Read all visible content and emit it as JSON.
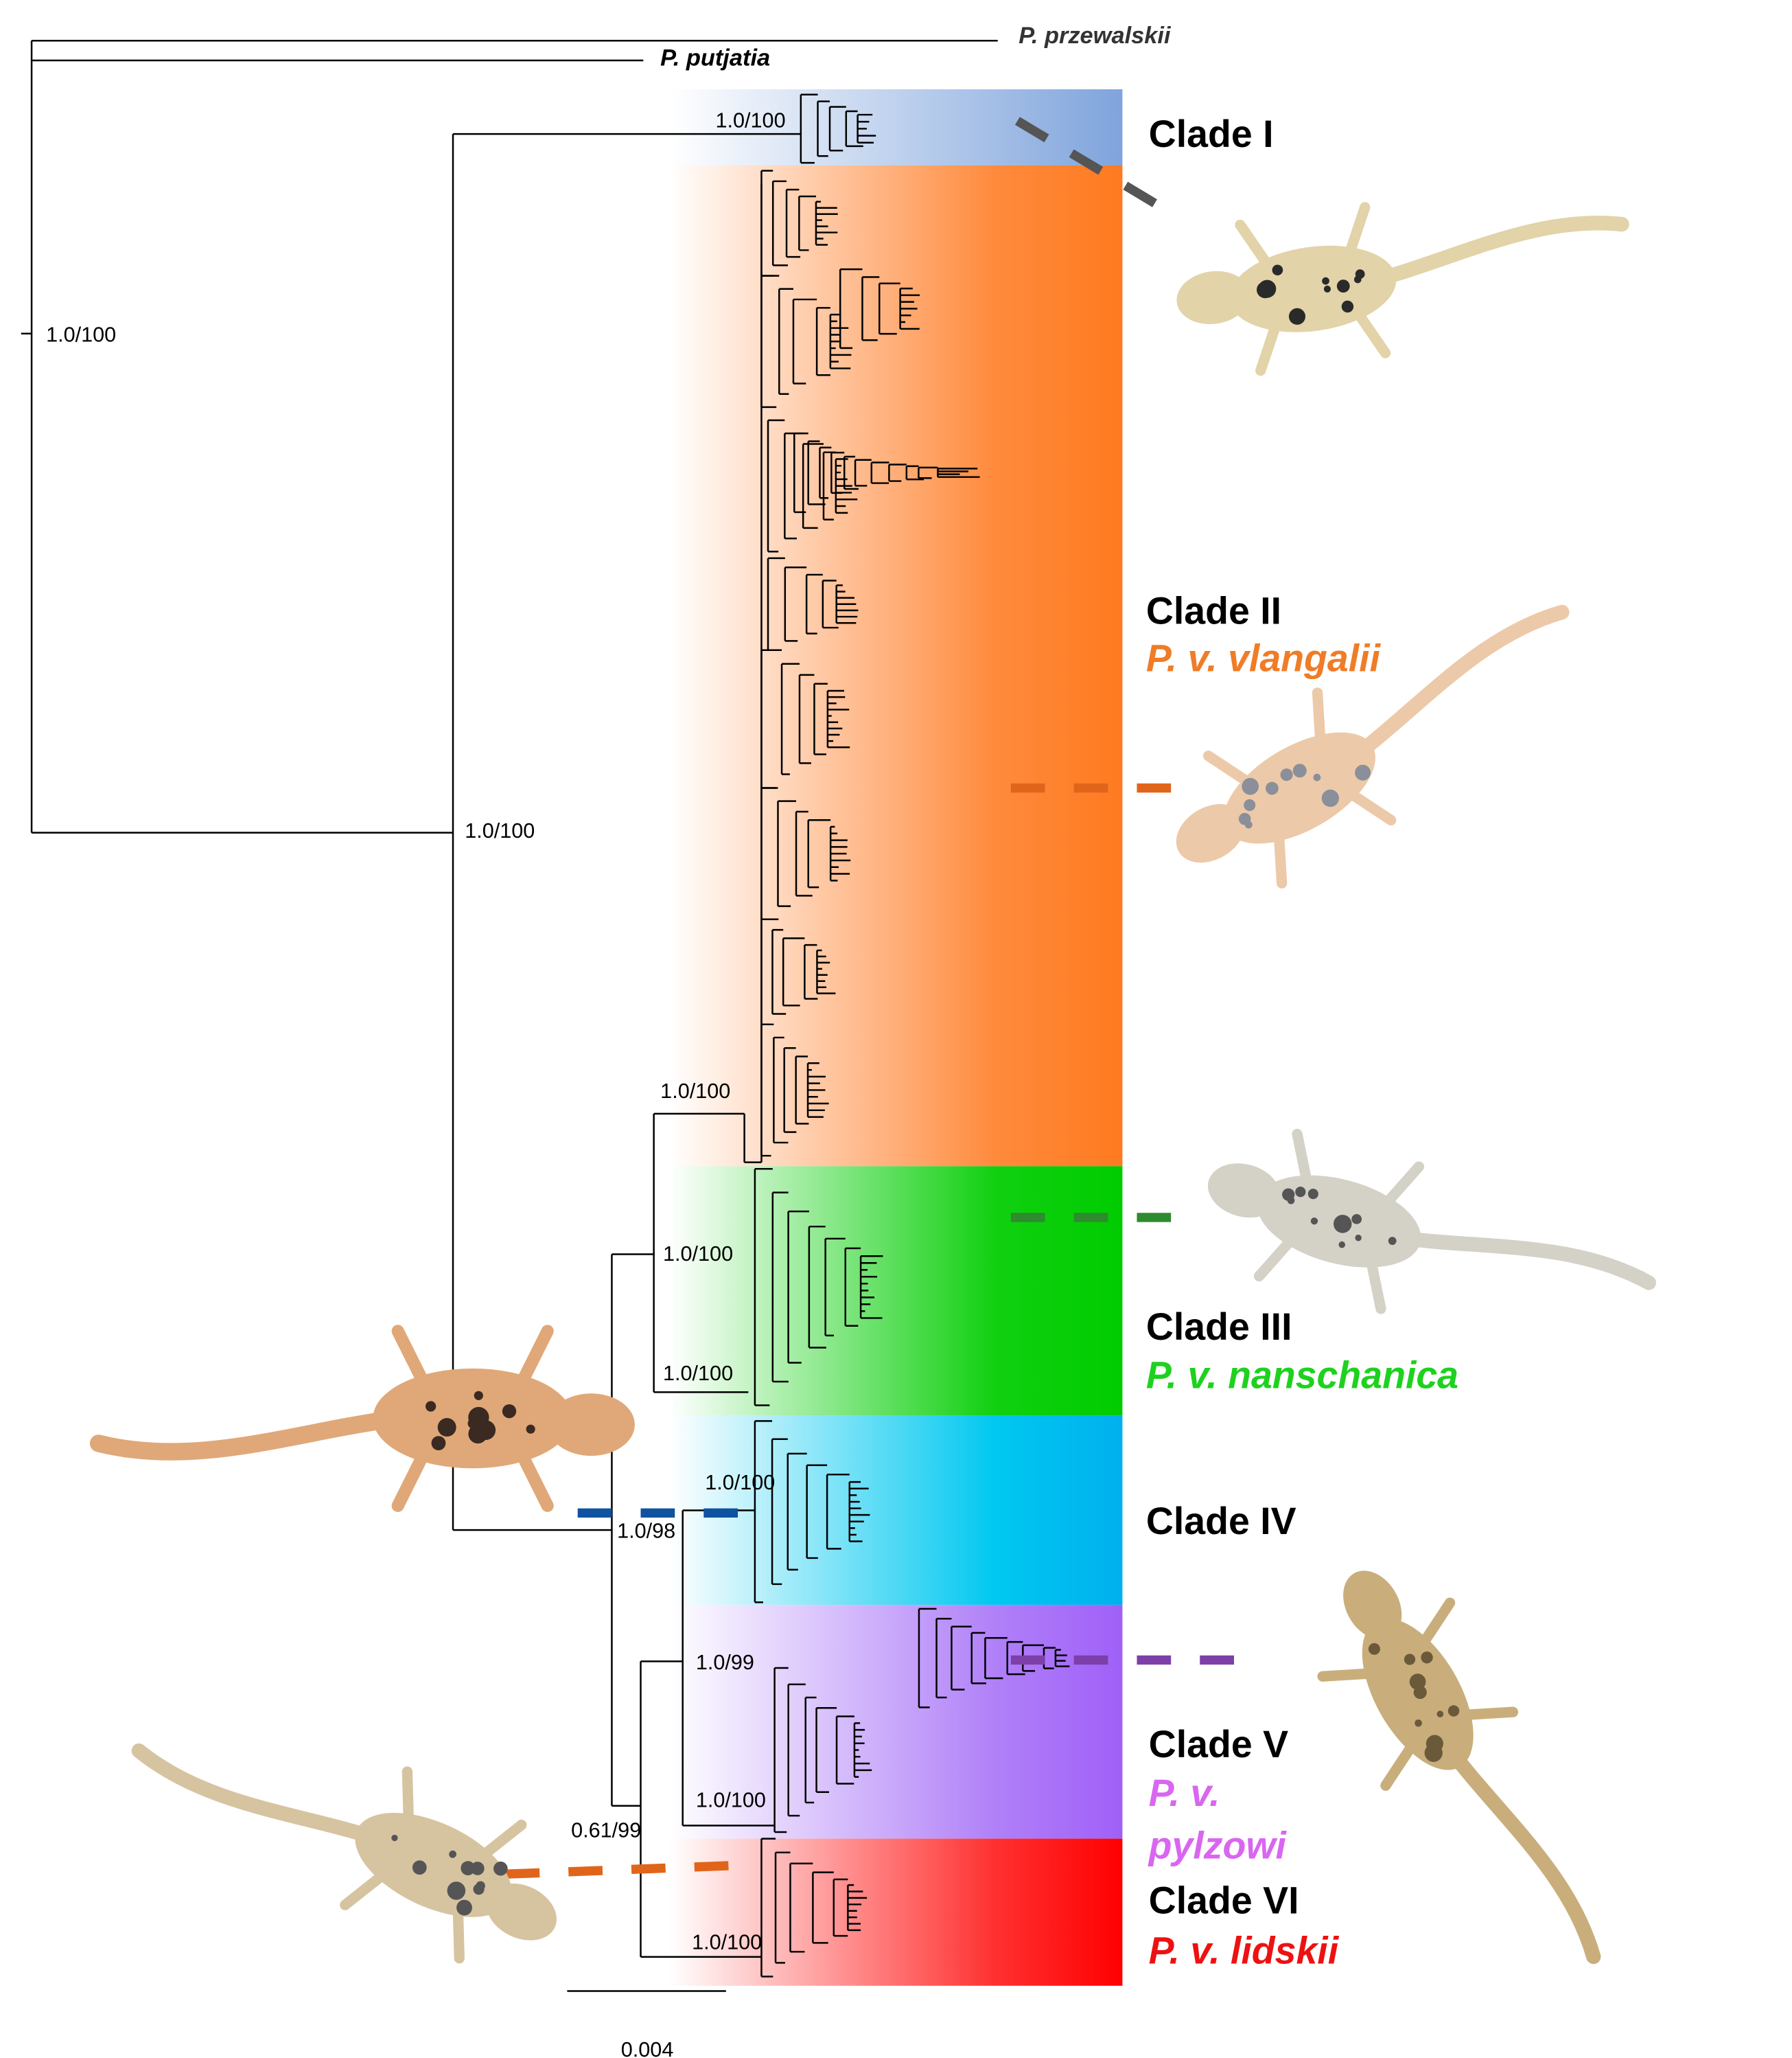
{
  "outgroups": [
    "P. przewalskii",
    "P. putjatia"
  ],
  "support_values": [
    "1.0/100",
    "1.0/100",
    "1.0/100",
    "1.0/100",
    "1.0/100",
    "1.0/100",
    "1.0/100",
    "1.0/98",
    "1.0/99",
    "1.0/100",
    "0.61/99",
    "1.0/100"
  ],
  "clades": [
    {
      "label": "Clade I"
    },
    {
      "label": "Clade II",
      "subspecies": [
        "P. v. vlangalii"
      ]
    },
    {
      "label": "Clade III",
      "subspecies": [
        "P. v. nanschanica"
      ]
    },
    {
      "label": "Clade IV"
    },
    {
      "label": "Clade V",
      "subspecies": [
        "P. v.",
        "pylzowi"
      ]
    },
    {
      "label": "Clade VI",
      "subspecies": [
        "P. v. lidskii"
      ]
    }
  ],
  "scale_bar": "0.004"
}
